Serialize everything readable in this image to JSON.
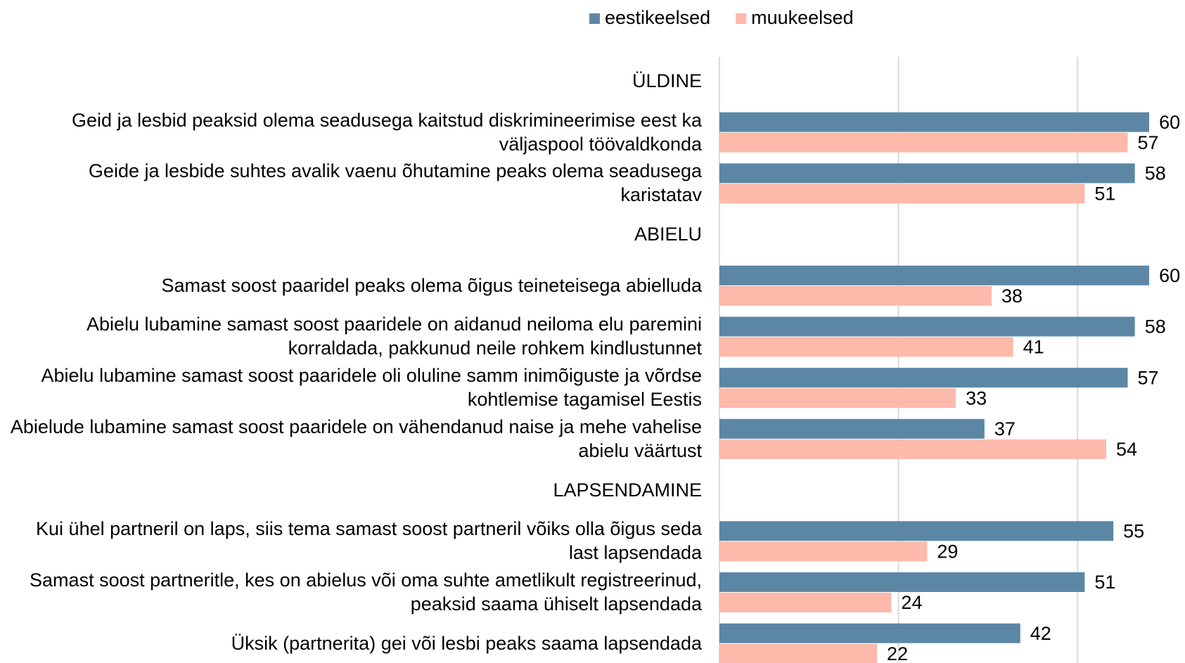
{
  "chart_data": {
    "type": "hbar",
    "categories": [
      "ÜLDINE",
      "Geid ja lesbid peaksid olema seadusega  kaitstud diskrimineerimise eest ka väljaspool töövaldkonda",
      "Geide ja lesbide suhtes avalik vaenu õhutamine peaks olema seadusega karistatav",
      "ABIELU",
      "Samast soost paaridel peaks olema õigus teineteisega abielluda",
      "Abielu lubamine samast soost paaridele on aidanud neiloma elu paremini korraldada, pakkunud neile rohkem kindlustunnet",
      "Abielu lubamine samast soost paaridele oli oluline samm inimõiguste ja võrdse kohtlemise tagamisel Eestis",
      "Abielude lubamine samast soost paaridele on vähendanud naise ja mehe vahelise abielu väärtust",
      "LAPSENDAMINE",
      "Kui ühel partneril on laps, siis tema samast soost partneril võiks olla õigus seda last lapsendada",
      "Samast soost partneritle, kes on abielus või oma suhte ametlikult registreerinud, peaksid saama ühiselt lapsendada",
      "Üksik (partnerita) gei või lesbi peaks saama lapsendada"
    ],
    "series": [
      {
        "name": "eestikeelsed",
        "color": "#5b87a5",
        "values": [
          null,
          60,
          58,
          null,
          60,
          58,
          57,
          37,
          null,
          55,
          51,
          42
        ]
      },
      {
        "name": "muukeelsed",
        "color": "#fdb9aa",
        "values": [
          null,
          57,
          51,
          null,
          38,
          41,
          33,
          54,
          null,
          29,
          24,
          22
        ]
      }
    ],
    "xlim": [
      0,
      65
    ],
    "xticks": [
      0,
      25,
      50
    ],
    "grid": true,
    "legend": "top"
  }
}
